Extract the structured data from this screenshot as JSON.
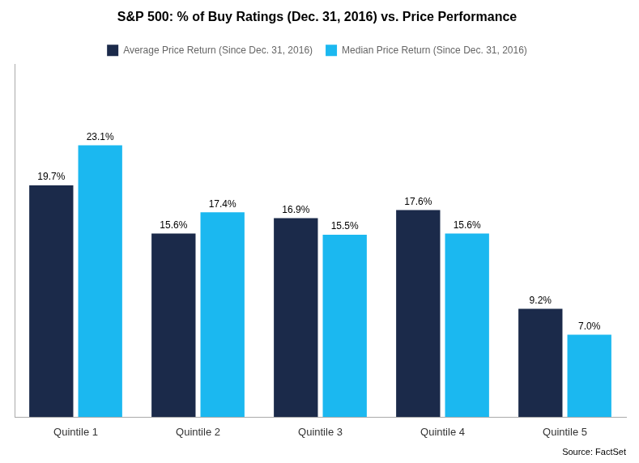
{
  "chart_data": {
    "type": "bar",
    "title": "S&P 500: % of Buy Ratings (Dec. 31, 2016) vs. Price Performance",
    "categories": [
      "Quintile 1",
      "Quintile 2",
      "Quintile 3",
      "Quintile 4",
      "Quintile 5"
    ],
    "series": [
      {
        "name": "Average Price Return (Since Dec. 31, 2016)",
        "color": "#1B2A4A",
        "values": [
          19.7,
          15.6,
          16.9,
          17.6,
          9.2
        ],
        "value_labels": [
          "19.7%",
          "15.6%",
          "16.9%",
          "17.6%",
          "9.2%"
        ]
      },
      {
        "name": "Median Price Return (Since Dec. 31, 2016)",
        "color": "#1BB8F0",
        "values": [
          23.1,
          17.4,
          15.5,
          15.6,
          7.0
        ],
        "value_labels": [
          "23.1%",
          "17.4%",
          "15.5%",
          "15.6%",
          "7.0%"
        ]
      }
    ],
    "ylim": [
      0,
      30
    ],
    "grid": false,
    "legend": "top",
    "data_labels": true,
    "tick_labels": "x",
    "annotations": [
      "Source: FactSet"
    ]
  }
}
